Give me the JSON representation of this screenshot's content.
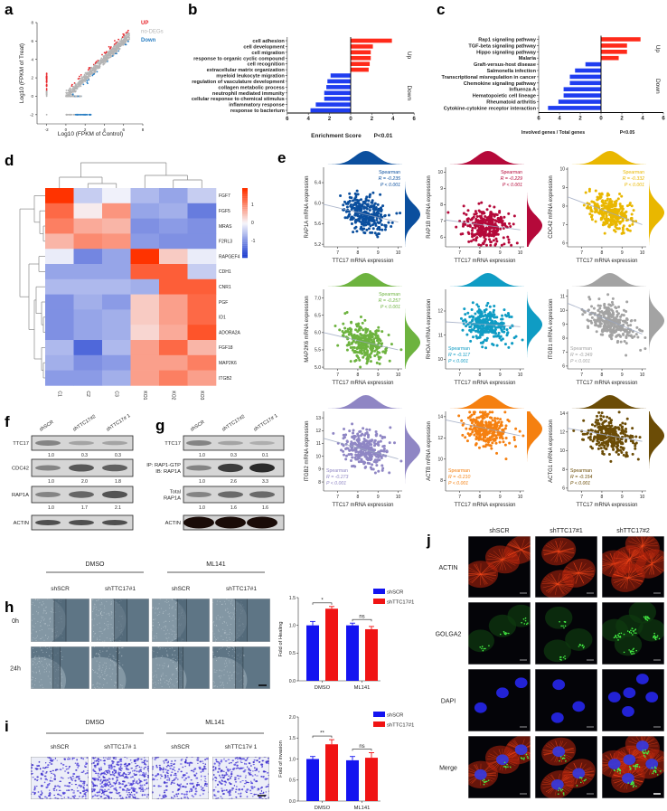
{
  "panel_labels": {
    "a": "a",
    "b": "b",
    "c": "c",
    "d": "d",
    "e": "e",
    "f": "f",
    "g": "g",
    "h": "h",
    "i": "i",
    "j": "j"
  },
  "chart_data": [
    {
      "panel": "a",
      "type": "scatter",
      "xlabel": "Log10 (FPKM of Control)",
      "ylabel": "Log10 (FPKM of Treat)",
      "xlim": [
        -3,
        8
      ],
      "ylim": [
        -3,
        8
      ],
      "xticks": [
        -2,
        0,
        2,
        4,
        6,
        8
      ],
      "yticks": [
        -2,
        0,
        2,
        4,
        6,
        8
      ],
      "legend_position": "top-right",
      "legend": [
        {
          "name": "UP",
          "color": "#e8262b"
        },
        {
          "name": "no-DEGs",
          "color": "#b4b4b4"
        },
        {
          "name": "Down",
          "color": "#2b7fc3"
        }
      ]
    },
    {
      "panel": "b",
      "type": "bar",
      "orientation": "horizontal",
      "xlabel": "Enrichment Score",
      "note": "P<0.01",
      "xlim": [
        -6,
        6
      ],
      "xtick_labels": [
        "6",
        "4",
        "2",
        "0",
        "2",
        "4",
        "6"
      ],
      "groups": {
        "up": "Up",
        "down": "Down"
      },
      "colors": {
        "up": "#ff2a1a",
        "down": "#1f3df0"
      },
      "bars": [
        {
          "label": "cell adhesion",
          "value": 3.9
        },
        {
          "label": "cell development",
          "value": 2.1
        },
        {
          "label": "cell migration",
          "value": 1.9
        },
        {
          "label": "response to organic cyclic compound",
          "value": 1.9
        },
        {
          "label": "cell recognition",
          "value": 1.8
        },
        {
          "label": "extracellular matrix organization",
          "value": 1.7
        },
        {
          "label": "myeloid leukocyte migration",
          "value": -1.9
        },
        {
          "label": "regulation of vasculature development",
          "value": -2.2
        },
        {
          "label": "collagen metabolic process",
          "value": -2.3
        },
        {
          "label": "neutrophil mediated immunity",
          "value": -2.5
        },
        {
          "label": "cellular response to chemical stimulus",
          "value": -2.5
        },
        {
          "label": "inflammatory response",
          "value": -3.3
        },
        {
          "label": "response to bacterium",
          "value": -3.8
        }
      ]
    },
    {
      "panel": "c",
      "type": "bar",
      "orientation": "horizontal",
      "xlabel": "Involved genes / Total genes",
      "note": "P<0.05",
      "xlim": [
        -6,
        6
      ],
      "xtick_labels": [
        "6",
        "4",
        "2",
        "0",
        "2",
        "4",
        "6"
      ],
      "groups": {
        "up": "Up",
        "down": "Down"
      },
      "colors": {
        "up": "#ff2a1a",
        "down": "#1f3df0"
      },
      "bars": [
        {
          "label": "Rap1 signaling pathway",
          "value": 3.8
        },
        {
          "label": "TGF-beta signaling pathway",
          "value": 2.5
        },
        {
          "label": "Hippo signaling pathway",
          "value": 2.5
        },
        {
          "label": "Malaria",
          "value": 1.7
        },
        {
          "label": "Graft-versus-host disease",
          "value": -1.5
        },
        {
          "label": "Salmonella infection",
          "value": -2.5
        },
        {
          "label": "Transcriptional misregulation in cancer",
          "value": -3.0
        },
        {
          "label": "Chemokine signaling pathway",
          "value": -3.0
        },
        {
          "label": "Influenza A",
          "value": -3.6
        },
        {
          "label": "Hematopoietic cell lineage",
          "value": -3.6
        },
        {
          "label": "Rheumatoid arthritis",
          "value": -4.1
        },
        {
          "label": "Cytokine-cytokine receptor interaction",
          "value": -5.1
        }
      ]
    },
    {
      "panel": "d",
      "type": "heatmap",
      "columns": [
        "C1",
        "C2",
        "C3",
        "KO1",
        "KO2",
        "KO3"
      ],
      "rows": [
        "FGF7",
        "FGF5",
        "MRAS",
        "F2RL3",
        "RAPGEF4",
        "CDH1",
        "CNR1",
        "PGF",
        "ID1",
        "ADORA2A",
        "FGF18",
        "MAP2K6",
        "ITGB2"
      ],
      "values": [
        [
          1.8,
          -0.4,
          -0.05,
          -0.6,
          -0.8,
          -0.4
        ],
        [
          1.3,
          0.1,
          0.9,
          -0.8,
          -0.7,
          -1.2
        ],
        [
          1.1,
          0.7,
          0.6,
          -1.0,
          -0.9,
          -1.0
        ],
        [
          0.6,
          1.0,
          0.9,
          -0.9,
          -1.0,
          -1.0
        ],
        [
          -0.1,
          -1.1,
          -0.8,
          1.8,
          0.4,
          -0.1
        ],
        [
          -0.8,
          -0.8,
          -0.8,
          1.4,
          1.4,
          -0.4
        ],
        [
          -0.6,
          -0.6,
          -0.6,
          -0.7,
          1.4,
          1.4
        ],
        [
          -1.0,
          -0.7,
          -0.9,
          0.4,
          0.8,
          1.3
        ],
        [
          -1.0,
          -0.8,
          -0.7,
          0.4,
          0.8,
          1.3
        ],
        [
          -1.0,
          -0.8,
          -0.7,
          0.3,
          0.7,
          1.5
        ],
        [
          -0.6,
          -1.4,
          -0.6,
          0.8,
          1.3,
          0.6
        ],
        [
          -0.7,
          -1.0,
          -0.9,
          0.8,
          0.8,
          1.1
        ],
        [
          -0.9,
          -0.9,
          -0.7,
          0.8,
          1.1,
          0.8
        ]
      ],
      "colorbar_ticks": [
        "1",
        "0",
        "-1"
      ],
      "colors": {
        "high": "#ff3300",
        "mid": "#f6f6fb",
        "low": "#1f3fd0"
      }
    },
    {
      "panel": "e",
      "type": "scatter",
      "xlabel": "TTC17 mRNA expression",
      "ylabel": "RAP1A mRNA expression",
      "color": "#0b4f9e",
      "xlim": [
        6.3,
        10.2
      ],
      "ylim": [
        5.15,
        6.7
      ],
      "xticks": [
        "7",
        "8",
        "9",
        "10"
      ],
      "yticks": [
        "5.2",
        "5.6",
        "6.0",
        "6.4"
      ],
      "fit_line": [
        [
          6.3,
          5.98
        ],
        [
          10,
          5.63
        ]
      ],
      "stat": {
        "method": "Spearman",
        "r": "R = -0.235",
        "p": "P < 0.001",
        "position": "top-right"
      }
    },
    {
      "panel": "e",
      "type": "scatter",
      "xlabel": "TTC17 mRNA expression",
      "ylabel": "RAP1B mRNA expression",
      "color": "#b5093a",
      "xlim": [
        6.3,
        10.2
      ],
      "ylim": [
        5.4,
        10.3
      ],
      "xticks": [
        "7",
        "8",
        "9",
        "10"
      ],
      "yticks": [
        "6",
        "7",
        "8",
        "9",
        "10"
      ],
      "fit_line": [
        [
          6.3,
          7.05
        ],
        [
          10,
          6.45
        ]
      ],
      "stat": {
        "method": "Spearman",
        "r": "R = -0.229",
        "p": "P < 0.001",
        "position": "top-right"
      }
    },
    {
      "panel": "e",
      "type": "scatter",
      "xlabel": "TTC17 mRNA expression",
      "ylabel": "CDC42 mRNA expression",
      "color": "#e9b700",
      "xlim": [
        6.3,
        10.2
      ],
      "ylim": [
        5.8,
        10.1
      ],
      "xticks": [
        "7",
        "8",
        "9",
        "10"
      ],
      "yticks": [
        "6",
        "7",
        "8",
        "9",
        "10"
      ],
      "fit_line": [
        [
          6.3,
          8.5
        ],
        [
          10,
          7.0
        ]
      ],
      "stat": {
        "method": "Spearman",
        "r": "R = -0.332",
        "p": "P < 0.001",
        "position": "top-right"
      }
    },
    {
      "panel": "e",
      "type": "scatter",
      "xlabel": "TTC17 mRNA expression",
      "ylabel": "MAP2K6 mRNA expression",
      "color": "#6db33f",
      "xlim": [
        6.3,
        10.2
      ],
      "ylim": [
        4.95,
        7.25
      ],
      "xticks": [
        "7",
        "8",
        "9",
        "10"
      ],
      "yticks": [
        "5.0",
        "5.5",
        "6.0",
        "6.5",
        "7.0"
      ],
      "fit_line": [
        [
          6.3,
          6.0
        ],
        [
          10,
          5.5
        ]
      ],
      "stat": {
        "method": "Spearman",
        "r": "R = -0.257",
        "p": "P < 0.001",
        "position": "top-right"
      }
    },
    {
      "panel": "e",
      "type": "scatter",
      "xlabel": "TTC17 mRNA expression",
      "ylabel": "RHOA mRNA expression",
      "color": "#0f9cc4",
      "xlim": [
        6.3,
        10.2
      ],
      "ylim": [
        9.6,
        12.9
      ],
      "xticks": [
        "7",
        "8",
        "9",
        "10"
      ],
      "yticks": [
        "10",
        "11",
        "12"
      ],
      "fit_line": [
        [
          6.3,
          11.55
        ],
        [
          10,
          11.35
        ]
      ],
      "stat": {
        "method": "Spearman",
        "r": "R = -0.117",
        "p": "P < 0.001",
        "position": "bottom-left"
      }
    },
    {
      "panel": "e",
      "type": "scatter",
      "xlabel": "TTC17 mRNA expression",
      "ylabel": "ITGB1 mRNA expression",
      "color": "#a3a3a3",
      "xlim": [
        6.3,
        10.2
      ],
      "ylim": [
        5.8,
        11.5
      ],
      "xticks": [
        "7",
        "8",
        "9",
        "10"
      ],
      "yticks": [
        "6",
        "7",
        "8",
        "9",
        "10",
        "11"
      ],
      "fit_line": [
        [
          6.3,
          10.5
        ],
        [
          10,
          8.3
        ]
      ],
      "stat": {
        "method": "Spearman",
        "r": "R = -0.349",
        "p": "P < 0.001",
        "position": "bottom-left"
      }
    },
    {
      "panel": "e",
      "type": "scatter",
      "xlabel": "TTC17 mRNA expression",
      "ylabel": "ITGB2 mRNA expression",
      "color": "#8f86c4",
      "xlim": [
        6.3,
        10.2
      ],
      "ylim": [
        7.3,
        13.5
      ],
      "xticks": [
        "7",
        "8",
        "9",
        "10"
      ],
      "yticks": [
        "8",
        "9",
        "10",
        "11",
        "12",
        "13"
      ],
      "fit_line": [
        [
          6.3,
          11.4
        ],
        [
          10,
          9.8
        ]
      ],
      "stat": {
        "method": "Spearman",
        "r": "R = -0.273",
        "p": "P < 0.001",
        "position": "bottom-left"
      }
    },
    {
      "panel": "e",
      "type": "scatter",
      "xlabel": "TTC17 mRNA expression",
      "ylabel": "ACTB mRNA expression",
      "color": "#f58010",
      "xlim": [
        6.3,
        10.2
      ],
      "ylim": [
        7.0,
        14.5
      ],
      "xticks": [
        "7",
        "8",
        "9",
        "10"
      ],
      "yticks": [
        "8",
        "10",
        "12",
        "14"
      ],
      "fit_line": [
        [
          6.3,
          13.7
        ],
        [
          10,
          12.2
        ]
      ],
      "stat": {
        "method": "Spearman",
        "r": "R = -0.210",
        "p": "P < 0.001",
        "position": "bottom-left"
      }
    },
    {
      "panel": "e",
      "type": "scatter",
      "xlabel": "TTC17 mRNA expression",
      "ylabel": "ACTG1 mRNA expression",
      "color": "#6b4c06",
      "xlim": [
        6.3,
        10.2
      ],
      "ylim": [
        5.7,
        14.2
      ],
      "xticks": [
        "7",
        "8",
        "9",
        "10"
      ],
      "yticks": [
        "6",
        "8",
        "10",
        "12",
        "14"
      ],
      "fit_line": [
        [
          6.3,
          12.4
        ],
        [
          10,
          11.0
        ]
      ],
      "stat": {
        "method": "Spearman",
        "r": "R = -0.154",
        "p": "P < 0.001",
        "position": "bottom-left"
      }
    },
    {
      "panel": "h",
      "type": "bar",
      "ylabel": "Fold of Healing",
      "categories": [
        "DMSO",
        "ML141"
      ],
      "ylim": [
        0,
        1.5
      ],
      "yticks": [
        "0.0",
        "0.5",
        "1.0",
        "1.5"
      ],
      "legend_position": "top-right",
      "series": [
        {
          "name": "shSCR",
          "color": "#1414f0",
          "values": [
            1.0,
            1.0
          ],
          "errors": [
            0.07,
            0.04
          ]
        },
        {
          "name": "shTTC17#1",
          "color": "#f01414",
          "values": [
            1.3,
            0.93
          ],
          "errors": [
            0.04,
            0.05
          ]
        }
      ],
      "significance": [
        "*",
        "ns"
      ]
    },
    {
      "panel": "i",
      "type": "bar",
      "ylabel": "Fold of invasion",
      "categories": [
        "DMSO",
        "ML141"
      ],
      "ylim": [
        0,
        2.0
      ],
      "yticks": [
        "0.0",
        "0.5",
        "1.0",
        "1.5",
        "2.0"
      ],
      "legend_position": "top-right",
      "series": [
        {
          "name": "shSCR",
          "color": "#1414f0",
          "values": [
            1.0,
            0.97
          ],
          "errors": [
            0.06,
            0.09
          ]
        },
        {
          "name": "shTTC17#1",
          "color": "#f01414",
          "values": [
            1.35,
            1.03
          ],
          "errors": [
            0.11,
            0.12
          ]
        }
      ],
      "significance": [
        "**",
        "ns"
      ]
    }
  ],
  "blots": {
    "f": {
      "lanes": [
        "shSCR",
        "shTTC17#2",
        "shTTC17# 1"
      ],
      "rows": [
        {
          "label": [
            "TTC17"
          ],
          "quant": [
            "1.0",
            "0.3",
            "0.3"
          ]
        },
        {
          "label": [
            "CDC42"
          ],
          "quant": [
            "1.0",
            "2.0",
            "1.8"
          ]
        },
        {
          "label": [
            "RAP1A"
          ],
          "quant": [
            "1.0",
            "1.7",
            "2.1"
          ]
        },
        {
          "label": [
            "ACTIN"
          ]
        }
      ]
    },
    "g": {
      "lanes": [
        "shSCR",
        "shTTC17#2",
        "shTTC17# 1"
      ],
      "rows": [
        {
          "label": [
            "TTC17"
          ],
          "quant": [
            "1.0",
            "0.3",
            "0.1"
          ]
        },
        {
          "label": [
            "IP: RAP1-GTP",
            "IB: RAP1A"
          ],
          "quant": [
            "1.0",
            "2.6",
            "3.3"
          ]
        },
        {
          "label": [
            "Total",
            "RAP1A"
          ],
          "quant": [
            "1.0",
            "1.6",
            "1.6"
          ]
        },
        {
          "label": [
            "ACTIN"
          ]
        }
      ]
    }
  },
  "scratch": {
    "groups": [
      "DMSO",
      "ML141"
    ],
    "columns": [
      "shSCR",
      "shTTC17#1",
      "shSCR",
      "shTTC17#1"
    ],
    "rows": [
      "0h",
      "24h"
    ]
  },
  "invasion": {
    "groups": [
      "DMSO",
      "ML141"
    ],
    "columns": [
      "shSCR",
      "shTTC17# 1",
      "shSCR",
      "shTTC17# 1"
    ]
  },
  "immunofluorescence": {
    "columns": [
      "shSCR",
      "shTTC17#1",
      "shTTC17#2"
    ],
    "rows": [
      "ACTIN",
      "GOLGA2",
      "DAPI",
      "Merge"
    ]
  }
}
